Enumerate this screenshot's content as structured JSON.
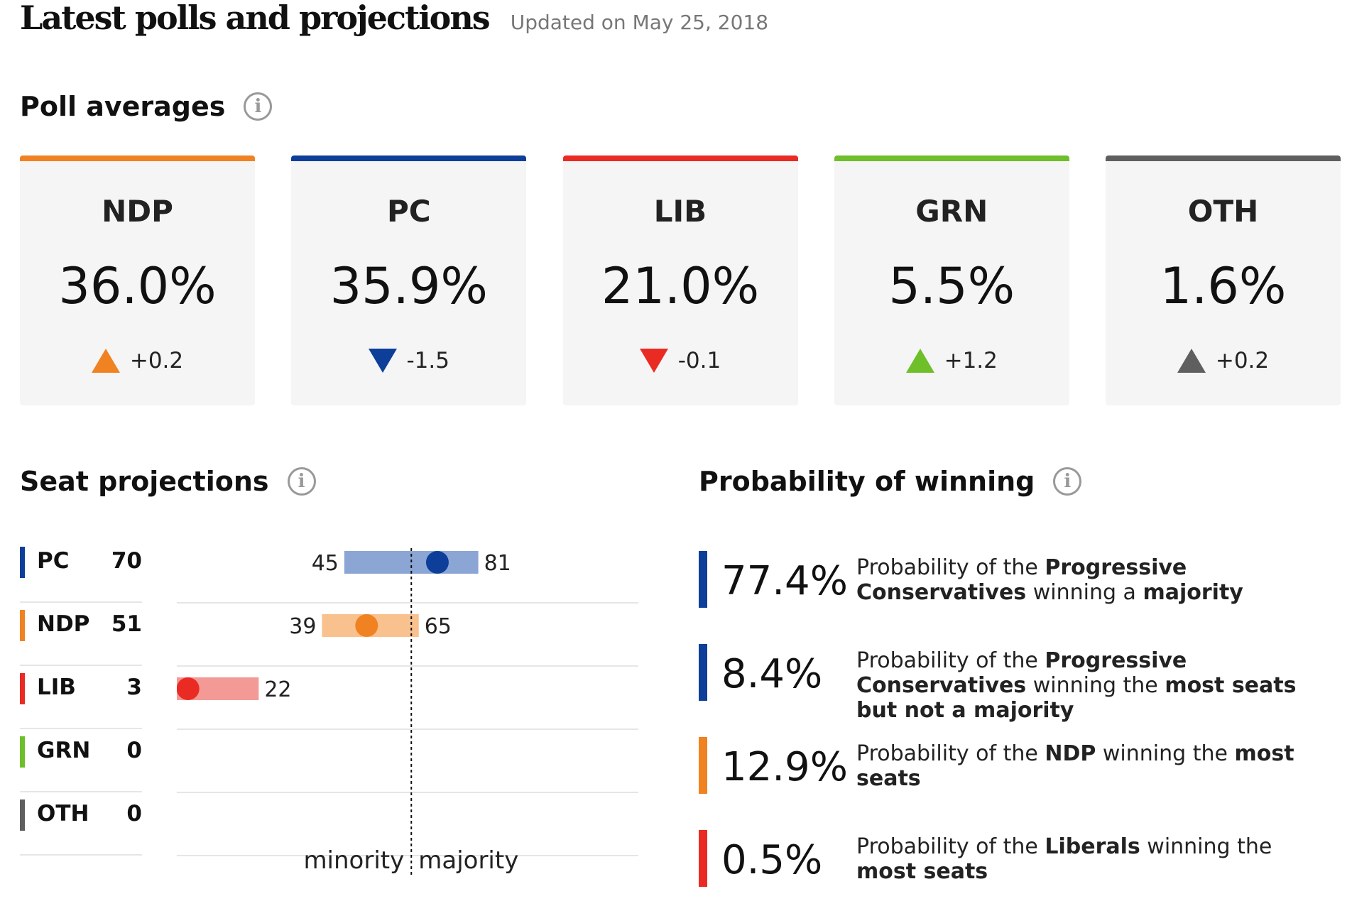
{
  "header": {
    "title": "Latest polls and projections",
    "updated": "Updated on May 25, 2018"
  },
  "poll_section": {
    "title": "Poll averages",
    "info_icon": "info-icon"
  },
  "poll_cards": [
    {
      "party": "NDP",
      "value": "36.0%",
      "change": "+0.2",
      "direction": "up",
      "color": "#f08222"
    },
    {
      "party": "PC",
      "value": "35.9%",
      "change": "-1.5",
      "direction": "down",
      "color": "#0d3f9a"
    },
    {
      "party": "LIB",
      "value": "21.0%",
      "change": "-0.1",
      "direction": "down",
      "color": "#ea2b24"
    },
    {
      "party": "GRN",
      "value": "5.5%",
      "change": "+1.2",
      "direction": "up",
      "color": "#6ebf2a"
    },
    {
      "party": "OTH",
      "value": "1.6%",
      "change": "+0.2",
      "direction": "up",
      "color": "#5f5f5f"
    }
  ],
  "seat_section": {
    "title": "Seat projections",
    "info_icon": "info-icon"
  },
  "prob_section": {
    "title": "Probability of winning",
    "info_icon": "info-icon"
  },
  "chart_data": {
    "type": "range-dot",
    "threshold_labels": [
      "minority",
      "majority"
    ],
    "majority_threshold": 63,
    "xlim": [
      0,
      124
    ],
    "series": [
      {
        "party": "PC",
        "projection": 70,
        "low": 45,
        "high": 81,
        "color": "#0d3f9a",
        "range_color": "#8ba6d4"
      },
      {
        "party": "NDP",
        "projection": 51,
        "low": 39,
        "high": 65,
        "color": "#f08222",
        "range_color": "#f8c18e"
      },
      {
        "party": "LIB",
        "projection": 3,
        "low": 0,
        "high": 22,
        "color": "#ea2b24",
        "range_color": "#f39a97"
      },
      {
        "party": "GRN",
        "projection": 0,
        "low": null,
        "high": null,
        "color": "#6ebf2a",
        "range_color": "#b7df94"
      },
      {
        "party": "OTH",
        "projection": 0,
        "low": null,
        "high": null,
        "color": "#5f5f5f",
        "range_color": "#bdbdbd"
      }
    ]
  },
  "probabilities": [
    {
      "value": "77.4%",
      "color": "#0d3f9a",
      "parts": [
        [
          "Probability of the ",
          false
        ],
        [
          "Progressive Conservatives",
          true
        ],
        [
          " winning a ",
          false
        ],
        [
          "majority",
          true
        ]
      ]
    },
    {
      "value": "8.4%",
      "color": "#0d3f9a",
      "parts": [
        [
          "Probability of the ",
          false
        ],
        [
          "Progressive Conservatives",
          true
        ],
        [
          " winning the ",
          false
        ],
        [
          "most seats but not a majority",
          true
        ]
      ]
    },
    {
      "value": "12.9%",
      "color": "#f08222",
      "parts": [
        [
          "Probability of the ",
          false
        ],
        [
          "NDP",
          true
        ],
        [
          " winning the ",
          false
        ],
        [
          "most seats",
          true
        ]
      ]
    },
    {
      "value": "0.5%",
      "color": "#ea2b24",
      "parts": [
        [
          "Probability of the ",
          false
        ],
        [
          "Liberals",
          true
        ],
        [
          " winning the ",
          false
        ],
        [
          "most seats",
          true
        ]
      ]
    }
  ]
}
